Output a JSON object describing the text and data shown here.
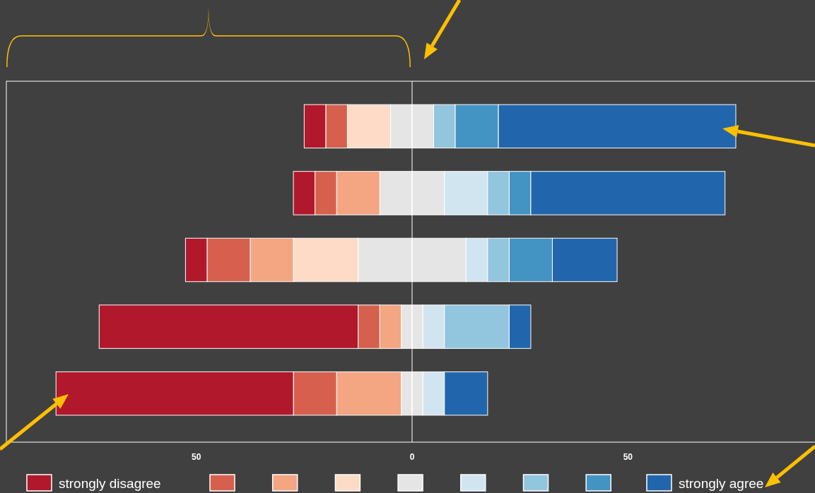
{
  "chart_data": {
    "type": "bar",
    "orientation": "horizontal",
    "stacked": true,
    "categories": [
      null,
      null,
      null,
      null,
      null
    ],
    "series": [
      {
        "color": "#e5e5e5",
        "values": [
          -5,
          -7.5,
          -12.5,
          -2.5,
          -2.5
        ]
      },
      {
        "color": "#fddbc7",
        "values": [
          -10,
          0,
          -15,
          0,
          0
        ]
      },
      {
        "color": "#f4a582",
        "values": [
          0,
          -10,
          -10,
          -5,
          -15
        ]
      },
      {
        "color": "#d6604d",
        "values": [
          -5,
          -5,
          -10,
          -5,
          -10
        ]
      },
      {
        "name": "strongly disagree",
        "color": "#b2182b",
        "values": [
          -5,
          -5,
          -5,
          -60,
          -55
        ]
      },
      {
        "color": "#e5e5e5",
        "values": [
          5,
          7.5,
          12.5,
          2.5,
          2.5
        ]
      },
      {
        "color": "#d1e5f0",
        "values": [
          0,
          10,
          5,
          5,
          5
        ]
      },
      {
        "color": "#92c5de",
        "values": [
          5,
          5,
          5,
          15,
          0
        ]
      },
      {
        "color": "#4393c3",
        "values": [
          10,
          5,
          10,
          0,
          0
        ]
      },
      {
        "name": "strongly agree",
        "color": "#2166ac",
        "values": [
          55,
          45,
          15,
          5,
          10
        ]
      }
    ],
    "xlim": [
      -94,
      94
    ],
    "xticks": [
      {
        "value": -50,
        "label": "50"
      },
      0,
      50
    ],
    "ref_lines": [
      {
        "axis": "x",
        "value": 0,
        "color": "#ffffff"
      }
    ],
    "legend": "bottom",
    "grid": false
  }
}
